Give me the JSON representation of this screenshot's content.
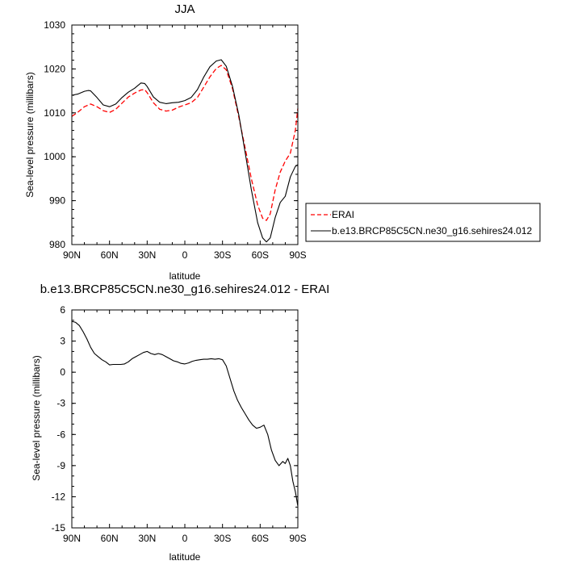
{
  "chart_data": [
    {
      "type": "line",
      "title": "JJA",
      "xlabel": "latitude",
      "ylabel": "Sea-level pressure (millibars)",
      "xlim": [
        90,
        -90
      ],
      "ylim": [
        980,
        1030
      ],
      "xticks": [
        90,
        60,
        30,
        0,
        -30,
        -60,
        -90
      ],
      "xticklabels": [
        "90N",
        "60N",
        "30N",
        "0",
        "30S",
        "60S",
        "90S"
      ],
      "yticks": [
        980,
        990,
        1000,
        1010,
        1020,
        1030
      ],
      "yticklabels": [
        "980",
        "990",
        "1000",
        "1010",
        "1020",
        "1030"
      ],
      "legend": "right",
      "series": [
        {
          "name": "ERAI",
          "color": "#ff0000",
          "dashed": true,
          "x": [
            90,
            85,
            80,
            75,
            70,
            65,
            60,
            55,
            50,
            45,
            40,
            35,
            32,
            30,
            25,
            20,
            15,
            10,
            5,
            0,
            -5,
            -10,
            -15,
            -20,
            -25,
            -29,
            -33,
            -38,
            -43,
            -48,
            -53,
            -58,
            -62,
            -65,
            -68,
            -72,
            -76,
            -80,
            -84,
            -88,
            -90
          ],
          "y": [
            1009.2,
            1010.2,
            1011.4,
            1012,
            1011.4,
            1010.5,
            1010.1,
            1010.8,
            1012.2,
            1013.6,
            1014.5,
            1015.2,
            1015.3,
            1014.6,
            1012.3,
            1010.8,
            1010.4,
            1010.6,
            1011.3,
            1011.8,
            1012.3,
            1013.5,
            1015.8,
            1018.2,
            1020.1,
            1020.8,
            1019.8,
            1015.5,
            1009,
            1002,
            995,
            989,
            986,
            985.5,
            987,
            992.5,
            996.5,
            999,
            1000.8,
            1006,
            1011
          ]
        },
        {
          "name": "b.e13.BRCP85C5CN.ne30_g16.sehires24.012",
          "color": "#000000",
          "dashed": false,
          "x": [
            90,
            85,
            80,
            77,
            75,
            70,
            65,
            60,
            55,
            50,
            45,
            40,
            35,
            32,
            30,
            25,
            20,
            15,
            10,
            5,
            0,
            -5,
            -10,
            -15,
            -20,
            -25,
            -29,
            -33,
            -38,
            -43,
            -48,
            -53,
            -58,
            -62,
            -65,
            -68,
            -72,
            -76,
            -80,
            -84,
            -88,
            -90
          ],
          "y": [
            1014,
            1014.3,
            1014.9,
            1015.1,
            1015,
            1013.5,
            1011.8,
            1011.4,
            1012,
            1013.5,
            1014.7,
            1015.6,
            1016.8,
            1016.7,
            1016,
            1013.6,
            1012.4,
            1012.1,
            1012.3,
            1012.4,
            1012.8,
            1013.5,
            1015.3,
            1018.1,
            1020.5,
            1021.8,
            1022.1,
            1020.6,
            1016,
            1009.5,
            1001,
            992.5,
            985,
            981.5,
            980.6,
            981.5,
            986.2,
            989.6,
            991,
            995.4,
            997.8,
            998.2
          ]
        }
      ]
    },
    {
      "type": "line",
      "title": "b.e13.BRCP85C5CN.ne30_g16.sehires24.012 - ERAI",
      "xlabel": "latitude",
      "ylabel": "Sea-level pressure (millibars)",
      "xlim": [
        90,
        -90
      ],
      "ylim": [
        -15,
        6
      ],
      "xticks": [
        90,
        60,
        30,
        0,
        -30,
        -60,
        -90
      ],
      "xticklabels": [
        "90N",
        "60N",
        "30N",
        "0",
        "30S",
        "60S",
        "90S"
      ],
      "yticks": [
        -15,
        -12,
        -9,
        -6,
        -3,
        0,
        3,
        6
      ],
      "yticklabels": [
        "-15",
        "-12",
        "-9",
        "-6",
        "-3",
        "0",
        "3",
        "6"
      ],
      "series": [
        {
          "color": "#000000",
          "dashed": false,
          "x": [
            90,
            87,
            84,
            81,
            78,
            75,
            72,
            69,
            66,
            63,
            60,
            57,
            54,
            51,
            48,
            45,
            42,
            39,
            36,
            33,
            30,
            27,
            24,
            21,
            18,
            15,
            12,
            9,
            6,
            3,
            0,
            -3,
            -6,
            -9,
            -12,
            -15,
            -18,
            -21,
            -24,
            -27,
            -30,
            -33,
            -36,
            -39,
            -42,
            -45,
            -48,
            -51,
            -54,
            -57,
            -60,
            -63,
            -66,
            -69,
            -72,
            -75,
            -78,
            -80,
            -82,
            -84,
            -86,
            -88,
            -90
          ],
          "y": [
            4.9,
            4.8,
            4.5,
            3.9,
            3.2,
            2.4,
            1.8,
            1.5,
            1.2,
            1.0,
            0.7,
            0.75,
            0.75,
            0.75,
            0.8,
            1.0,
            1.3,
            1.5,
            1.7,
            1.9,
            2.0,
            1.8,
            1.7,
            1.8,
            1.7,
            1.5,
            1.3,
            1.1,
            1.0,
            0.85,
            0.8,
            0.9,
            1.05,
            1.15,
            1.2,
            1.25,
            1.25,
            1.3,
            1.25,
            1.3,
            1.2,
            0.6,
            -0.6,
            -1.8,
            -2.7,
            -3.4,
            -4.0,
            -4.6,
            -5.1,
            -5.4,
            -5.3,
            -5.1,
            -6.0,
            -7.5,
            -8.5,
            -9.0,
            -8.6,
            -8.8,
            -8.3,
            -9.0,
            -10.5,
            -11.5,
            -12.9
          ]
        }
      ]
    }
  ]
}
